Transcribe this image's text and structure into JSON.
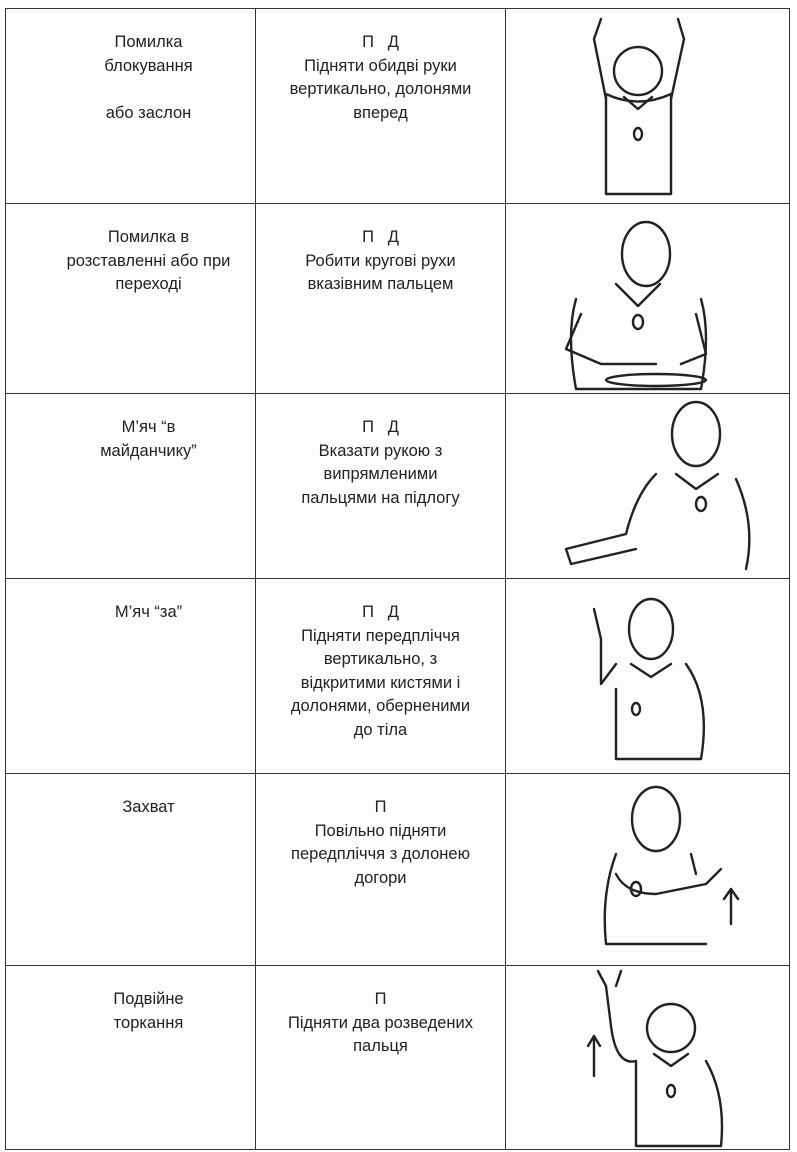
{
  "table": {
    "rows": [
      {
        "signal": [
          "Помилка",
          "блокування",
          "або заслон"
        ],
        "teams": "П   Д",
        "description": [
          "Підняти обидві руки",
          "вертикально, долонями",
          "вперед"
        ]
      },
      {
        "signal": [
          "Помилка в",
          "розставленні або при",
          "переході"
        ],
        "teams": "П   Д",
        "description": [
          "Робити кругові рухи",
          "вказівним пальцем"
        ]
      },
      {
        "signal": [
          "М’яч “в",
          "майданчику”"
        ],
        "teams": "П   Д",
        "description": [
          "Вказати рукою з",
          "випрямленими",
          "пальцями на підлогу"
        ]
      },
      {
        "signal": [
          "М’яч “за”"
        ],
        "teams": "П   Д",
        "description": [
          "Підняти передпліччя",
          "вертикально, з",
          "відкритими кистями і",
          "долонями, оберненими",
          "до тіла"
        ]
      },
      {
        "signal": [
          "Захват"
        ],
        "teams": "П",
        "description": [
          "Повільно підняти",
          "передпліччя з долонею",
          "догори"
        ]
      },
      {
        "signal": [
          "Подвійне",
          "торкання"
        ],
        "teams": "П",
        "description": [
          "Підняти два розведених",
          "пальця"
        ]
      }
    ]
  }
}
